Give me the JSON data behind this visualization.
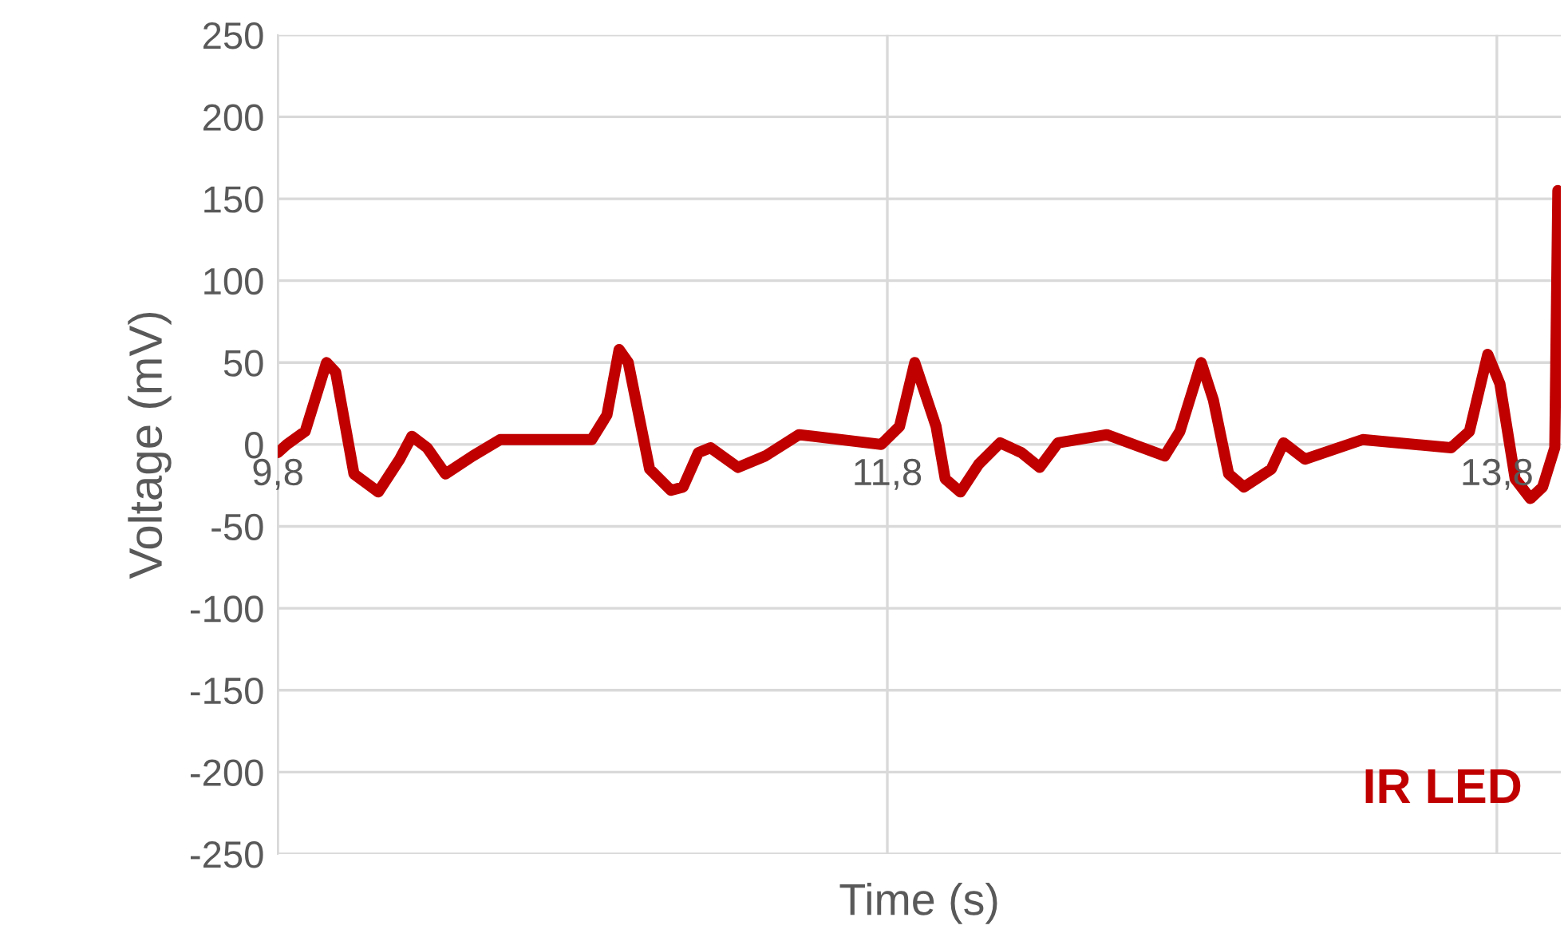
{
  "chart_data": {
    "type": "line",
    "xlabel": "Time (s)",
    "ylabel": "Voltage (mV)",
    "xlim": [
      9.8,
      14.01
    ],
    "xticks": [
      {
        "value": 9.8,
        "label": "9,8"
      },
      {
        "value": 11.8,
        "label": "11,8"
      },
      {
        "value": 13.8,
        "label": "13,8"
      }
    ],
    "ylim": [
      -250,
      250
    ],
    "yticks": [
      -250,
      -200,
      -150,
      -100,
      -50,
      0,
      50,
      100,
      150,
      200,
      250
    ],
    "grid": true,
    "legend": "bottom right",
    "marker": "none",
    "line_style": "solid",
    "series": [
      {
        "name": "IR LED",
        "color": "#c00000",
        "x": [
          9.8,
          9.83,
          9.89,
          9.96,
          9.99,
          10.05,
          10.13,
          10.2,
          10.24,
          10.29,
          10.35,
          10.44,
          10.53,
          10.83,
          10.88,
          10.92,
          10.95,
          11.02,
          11.09,
          11.13,
          11.18,
          11.22,
          11.31,
          11.4,
          11.51,
          11.78,
          11.84,
          11.89,
          11.96,
          11.99,
          12.04,
          12.1,
          12.17,
          12.24,
          12.3,
          12.36,
          12.52,
          12.71,
          12.76,
          12.83,
          12.87,
          12.92,
          12.97,
          13.06,
          13.1,
          13.17,
          13.36,
          13.65,
          13.71,
          13.77,
          13.81,
          13.86,
          13.91,
          13.95,
          13.99,
          14.0
        ],
        "values": [
          -5,
          0,
          8,
          50,
          44,
          -18,
          -29,
          -9,
          5,
          -2,
          -18,
          -7,
          3,
          3,
          18,
          58,
          50,
          -15,
          -28,
          -26,
          -5,
          -2,
          -14,
          -7,
          6,
          0,
          11,
          50,
          11,
          -21,
          -29,
          -12,
          1,
          -5,
          -14,
          1,
          6,
          -7,
          8,
          50,
          27,
          -18,
          -26,
          -15,
          1,
          -9,
          3,
          -2,
          8,
          55,
          37,
          -21,
          -33,
          -26,
          -2,
          155
        ]
      }
    ]
  }
}
